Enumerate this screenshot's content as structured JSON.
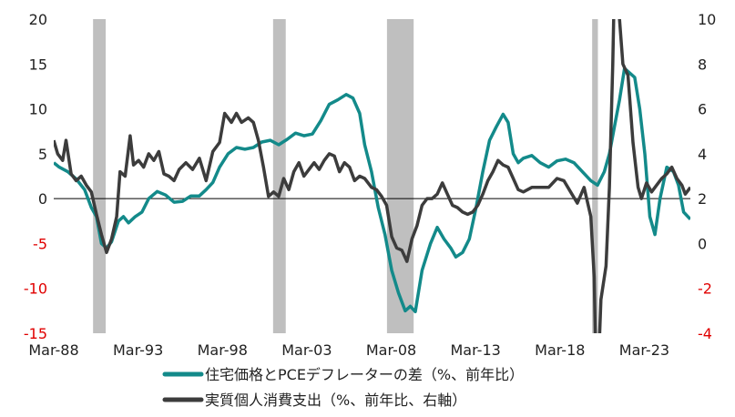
{
  "chart_data": {
    "type": "line",
    "title": "",
    "xlabel": "",
    "ylabel": "",
    "x_tick_labels": [
      "Mar-88",
      "Mar-93",
      "Mar-98",
      "Mar-03",
      "Mar-08",
      "Mar-13",
      "Mar-18",
      "Mar-23"
    ],
    "x_tick_years": [
      1988.17,
      1993.17,
      1998.17,
      2003.17,
      2008.17,
      2013.17,
      2018.17,
      2023.17
    ],
    "xlim": [
      1988.17,
      2025.9
    ],
    "y_left": {
      "ylim": [
        -15,
        20
      ],
      "ticks": [
        -15,
        -10,
        -5,
        0,
        5,
        10,
        15,
        20
      ],
      "tick_labels": [
        "-15",
        "-10",
        "-5",
        "0",
        "5",
        "10",
        "15",
        "20"
      ]
    },
    "y_right": {
      "ylim": [
        -4,
        10
      ],
      "ticks": [
        -4,
        -2,
        0,
        2,
        4,
        6,
        8,
        10
      ],
      "tick_labels": [
        "-4",
        "-2",
        "0",
        "2",
        "4",
        "6",
        "8",
        "10"
      ]
    },
    "recessions": [
      [
        1990.5,
        1991.25
      ],
      [
        2001.17,
        2001.92
      ],
      [
        2007.92,
        2009.5
      ],
      [
        2020.08,
        2020.42
      ]
    ],
    "grid": false,
    "legend_position": "bottom",
    "series": [
      {
        "name": "住宅価格とPCEデフレーターの差（%、前年比）",
        "axis": "left",
        "color": "#138a8a",
        "points": [
          [
            1988.17,
            4
          ],
          [
            1988.5,
            3.5
          ],
          [
            1989,
            3
          ],
          [
            1989.5,
            2.2
          ],
          [
            1990,
            1
          ],
          [
            1990.4,
            -1
          ],
          [
            1990.7,
            -2
          ],
          [
            1991,
            -5
          ],
          [
            1991.3,
            -5.5
          ],
          [
            1991.6,
            -4.8
          ],
          [
            1992,
            -2.5
          ],
          [
            1992.3,
            -2
          ],
          [
            1992.6,
            -2.7
          ],
          [
            1993,
            -2
          ],
          [
            1993.4,
            -1.5
          ],
          [
            1993.8,
            0
          ],
          [
            1994.3,
            0.8
          ],
          [
            1994.8,
            0.4
          ],
          [
            1995.3,
            -0.4
          ],
          [
            1995.8,
            -0.3
          ],
          [
            1996.3,
            0.3
          ],
          [
            1996.8,
            0.3
          ],
          [
            1997.2,
            1
          ],
          [
            1997.6,
            1.8
          ],
          [
            1998,
            3.5
          ],
          [
            1998.5,
            5
          ],
          [
            1999,
            5.7
          ],
          [
            1999.5,
            5.5
          ],
          [
            2000,
            5.7
          ],
          [
            2000.5,
            6.3
          ],
          [
            2001,
            6.5
          ],
          [
            2001.5,
            6
          ],
          [
            2002,
            6.6
          ],
          [
            2002.5,
            7.3
          ],
          [
            2003,
            7
          ],
          [
            2003.5,
            7.2
          ],
          [
            2004,
            8.7
          ],
          [
            2004.5,
            10.5
          ],
          [
            2005,
            11
          ],
          [
            2005.5,
            11.6
          ],
          [
            2005.9,
            11.2
          ],
          [
            2006.3,
            9.5
          ],
          [
            2006.6,
            6
          ],
          [
            2007,
            3
          ],
          [
            2007.4,
            -1
          ],
          [
            2007.8,
            -4
          ],
          [
            2008.2,
            -8
          ],
          [
            2008.6,
            -10.5
          ],
          [
            2009,
            -12.5
          ],
          [
            2009.3,
            -12
          ],
          [
            2009.6,
            -12.6
          ],
          [
            2010,
            -8
          ],
          [
            2010.5,
            -5
          ],
          [
            2010.9,
            -3.2
          ],
          [
            2011.3,
            -4.5
          ],
          [
            2011.7,
            -5.5
          ],
          [
            2012,
            -6.5
          ],
          [
            2012.4,
            -6
          ],
          [
            2012.8,
            -4.5
          ],
          [
            2013.2,
            -1
          ],
          [
            2013.6,
            3
          ],
          [
            2014,
            6.5
          ],
          [
            2014.4,
            8
          ],
          [
            2014.8,
            9.4
          ],
          [
            2015.1,
            8.5
          ],
          [
            2015.4,
            5
          ],
          [
            2015.7,
            4
          ],
          [
            2016,
            4.5
          ],
          [
            2016.5,
            4.8
          ],
          [
            2017,
            4
          ],
          [
            2017.5,
            3.5
          ],
          [
            2018,
            4.2
          ],
          [
            2018.5,
            4.4
          ],
          [
            2019,
            4
          ],
          [
            2019.5,
            3
          ],
          [
            2020,
            2
          ],
          [
            2020.4,
            1.5
          ],
          [
            2020.8,
            3
          ],
          [
            2021.1,
            5
          ],
          [
            2021.4,
            8
          ],
          [
            2021.7,
            11
          ],
          [
            2022,
            14.5
          ],
          [
            2022.3,
            14
          ],
          [
            2022.6,
            13.5
          ],
          [
            2022.9,
            10
          ],
          [
            2023.2,
            5
          ],
          [
            2023.5,
            -2
          ],
          [
            2023.8,
            -4
          ],
          [
            2024.1,
            0
          ],
          [
            2024.5,
            3.5
          ],
          [
            2024.9,
            3
          ],
          [
            2025.2,
            1.5
          ],
          [
            2025.5,
            -1.5
          ],
          [
            2025.9,
            -2.3
          ]
        ]
      },
      {
        "name": "実質個人消費支出（%、前年比、右軸）",
        "axis": "right",
        "color": "#3c3c3c",
        "points": [
          [
            1988.17,
            4.6
          ],
          [
            1988.4,
            4
          ],
          [
            1988.7,
            3.7
          ],
          [
            1988.9,
            4.6
          ],
          [
            1989.2,
            3.1
          ],
          [
            1989.5,
            2.8
          ],
          [
            1989.8,
            3
          ],
          [
            1990.1,
            2.6
          ],
          [
            1990.4,
            2.3
          ],
          [
            1990.7,
            1.3
          ],
          [
            1991,
            0.4
          ],
          [
            1991.3,
            -0.4
          ],
          [
            1991.6,
            0.2
          ],
          [
            1991.9,
            1.2
          ],
          [
            1992.1,
            3.2
          ],
          [
            1992.4,
            3
          ],
          [
            1992.7,
            4.8
          ],
          [
            1992.9,
            3.5
          ],
          [
            1993.2,
            3.7
          ],
          [
            1993.5,
            3.4
          ],
          [
            1993.8,
            4
          ],
          [
            1994.1,
            3.7
          ],
          [
            1994.4,
            4.1
          ],
          [
            1994.7,
            3.1
          ],
          [
            1995,
            3
          ],
          [
            1995.3,
            2.8
          ],
          [
            1995.6,
            3.3
          ],
          [
            1996,
            3.6
          ],
          [
            1996.4,
            3.3
          ],
          [
            1996.8,
            3.8
          ],
          [
            1997.2,
            2.8
          ],
          [
            1997.6,
            4.1
          ],
          [
            1998,
            4.5
          ],
          [
            1998.3,
            5.8
          ],
          [
            1998.7,
            5.4
          ],
          [
            1999,
            5.8
          ],
          [
            1999.3,
            5.4
          ],
          [
            1999.7,
            5.6
          ],
          [
            2000,
            5.4
          ],
          [
            2000.3,
            4.6
          ],
          [
            2000.6,
            3.4
          ],
          [
            2000.9,
            2.1
          ],
          [
            2001.2,
            2.3
          ],
          [
            2001.5,
            2.1
          ],
          [
            2001.8,
            2.9
          ],
          [
            2002.1,
            2.4
          ],
          [
            2002.4,
            3.2
          ],
          [
            2002.7,
            3.6
          ],
          [
            2003,
            3
          ],
          [
            2003.3,
            3.3
          ],
          [
            2003.6,
            3.6
          ],
          [
            2003.9,
            3.3
          ],
          [
            2004.2,
            3.7
          ],
          [
            2004.5,
            4
          ],
          [
            2004.8,
            3.9
          ],
          [
            2005.1,
            3.2
          ],
          [
            2005.4,
            3.6
          ],
          [
            2005.7,
            3.4
          ],
          [
            2006,
            2.8
          ],
          [
            2006.3,
            3
          ],
          [
            2006.6,
            2.9
          ],
          [
            2007,
            2.5
          ],
          [
            2007.3,
            2.4
          ],
          [
            2007.6,
            2.1
          ],
          [
            2007.9,
            1.7
          ],
          [
            2008.2,
            0.3
          ],
          [
            2008.5,
            -0.2
          ],
          [
            2008.8,
            -0.3
          ],
          [
            2009.1,
            -0.8
          ],
          [
            2009.4,
            0.2
          ],
          [
            2009.7,
            0.8
          ],
          [
            2010,
            1.7
          ],
          [
            2010.3,
            2
          ],
          [
            2010.6,
            2
          ],
          [
            2010.9,
            2.2
          ],
          [
            2011.2,
            2.7
          ],
          [
            2011.5,
            2.2
          ],
          [
            2011.8,
            1.7
          ],
          [
            2012.1,
            1.6
          ],
          [
            2012.4,
            1.4
          ],
          [
            2012.7,
            1.3
          ],
          [
            2013,
            1.4
          ],
          [
            2013.3,
            1.7
          ],
          [
            2013.6,
            2.2
          ],
          [
            2013.9,
            2.8
          ],
          [
            2014.2,
            3.2
          ],
          [
            2014.5,
            3.7
          ],
          [
            2014.8,
            3.5
          ],
          [
            2015.1,
            3.4
          ],
          [
            2015.4,
            2.9
          ],
          [
            2015.7,
            2.4
          ],
          [
            2016,
            2.3
          ],
          [
            2016.5,
            2.5
          ],
          [
            2017,
            2.5
          ],
          [
            2017.5,
            2.5
          ],
          [
            2018,
            2.9
          ],
          [
            2018.4,
            2.8
          ],
          [
            2018.8,
            2.3
          ],
          [
            2019.2,
            1.8
          ],
          [
            2019.6,
            2.5
          ],
          [
            2020,
            1.2
          ],
          [
            2020.2,
            -1.5
          ],
          [
            2020.35,
            -7.5
          ],
          [
            2020.6,
            -2.5
          ],
          [
            2020.9,
            -1
          ],
          [
            2021.1,
            2.5
          ],
          [
            2021.3,
            8
          ],
          [
            2021.5,
            15.5
          ],
          [
            2021.7,
            10
          ],
          [
            2021.9,
            8
          ],
          [
            2022.2,
            7.5
          ],
          [
            2022.5,
            4.5
          ],
          [
            2022.8,
            2.5
          ],
          [
            2023,
            2
          ],
          [
            2023.3,
            2.7
          ],
          [
            2023.6,
            2.3
          ],
          [
            2023.9,
            2.6
          ],
          [
            2024.2,
            2.9
          ],
          [
            2024.5,
            3.1
          ],
          [
            2024.8,
            3.4
          ],
          [
            2025.1,
            2.9
          ],
          [
            2025.4,
            2.6
          ],
          [
            2025.6,
            2.2
          ],
          [
            2025.9,
            2.5
          ]
        ]
      }
    ]
  }
}
